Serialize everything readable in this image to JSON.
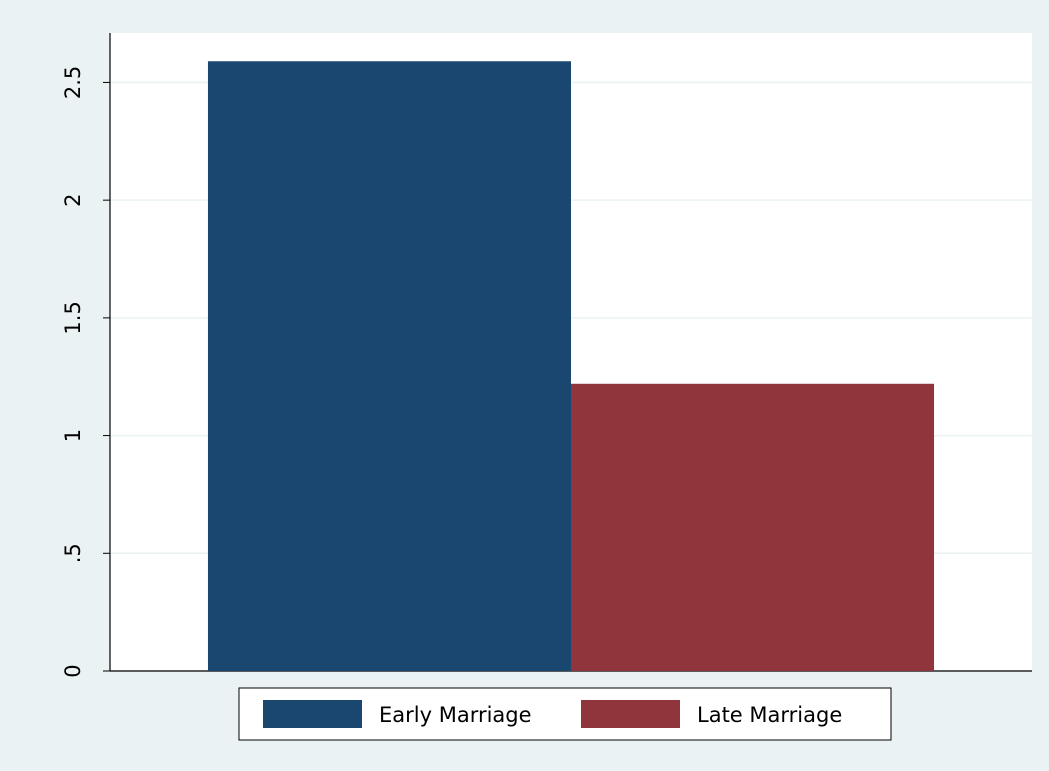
{
  "chart_data": {
    "type": "bar",
    "categories": [
      null
    ],
    "series": [
      {
        "name": "Early Marriage",
        "color": "#1a476f",
        "values": [
          2.59
        ]
      },
      {
        "name": "Late Marriage",
        "color": "#90353b",
        "values": [
          1.22
        ]
      }
    ],
    "ylim": [
      0,
      2.71
    ],
    "yticks": [
      0,
      {
        "value": 0.5,
        "label": ".5"
      },
      1,
      1.5,
      2,
      2.5
    ],
    "grid": true
  }
}
